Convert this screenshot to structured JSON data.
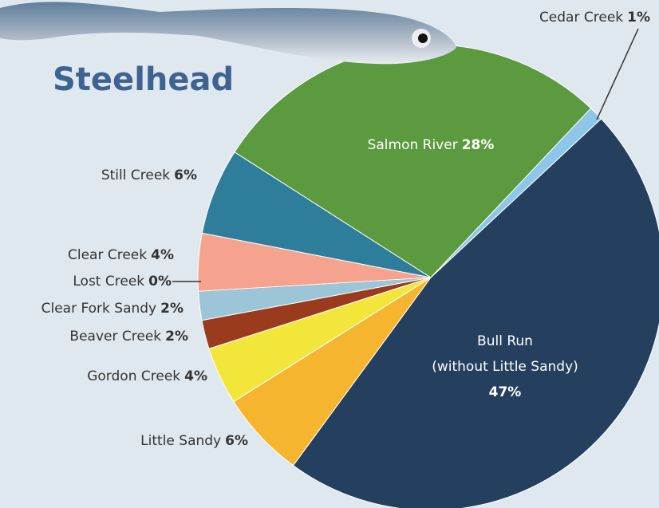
{
  "chart_data": {
    "type": "pie",
    "title": "Steelhead",
    "categories": [
      "Bull Run",
      "Little Sandy",
      "Gordon Creek",
      "Beaver Creek",
      "Clear Fork Sandy",
      "Lost Creek",
      "Clear Creek",
      "Still Creek",
      "Salmon River",
      "Cedar Creek"
    ],
    "annotations": [
      "(without Little Sandy)"
    ],
    "values": [
      47,
      6,
      4,
      2,
      2,
      0,
      4,
      6,
      28,
      1
    ],
    "value_labels": [
      "47%",
      "6%",
      "4%",
      "2%",
      "2%",
      "0%",
      "4%",
      "6%",
      "28%",
      "1%"
    ],
    "colors": [
      "#253f5e",
      "#f5b52e",
      "#f3e63a",
      "#9a3b1e",
      "#9cc6d8",
      "#c8d4de",
      "#f5a38e",
      "#2e7e9b",
      "#5b9a3e",
      "#8ec6ea"
    ]
  }
}
